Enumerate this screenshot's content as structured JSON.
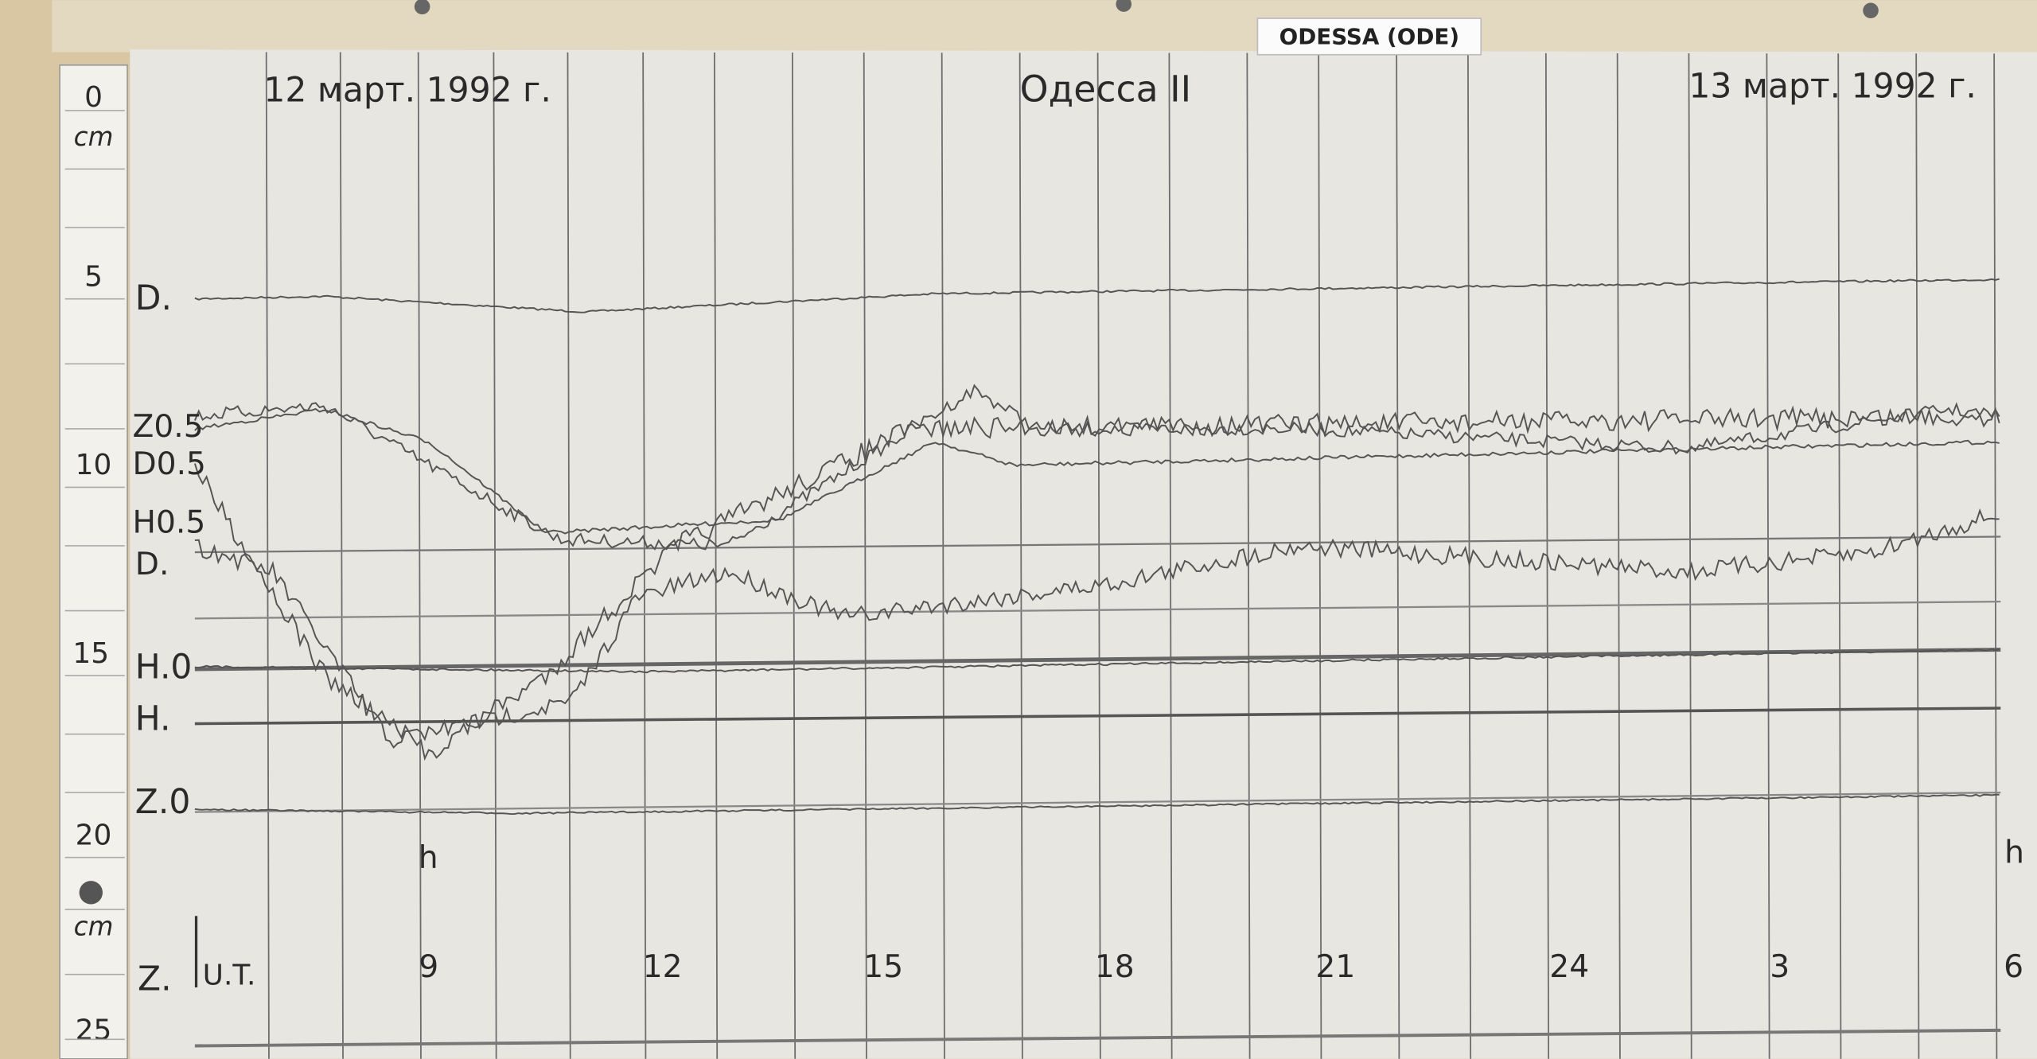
{
  "label": "ODESSA (ODE)",
  "header": {
    "date_left": "12 март. 1992 г.",
    "station": "Одесса II",
    "date_right": "13 март. 1992 г."
  },
  "ruler": {
    "ticks": [
      "0",
      "5",
      "10",
      "15",
      "20",
      "25"
    ],
    "units": [
      "cm",
      "cm"
    ]
  },
  "trace_labels": [
    "D.",
    "Z0.5",
    "D0.5",
    "H0.5",
    "D.",
    "H.0",
    "H.",
    "Z.0",
    "Z."
  ],
  "time_axis": {
    "unit_marks": [
      "h",
      "h"
    ],
    "zone": "U.T.",
    "hours": [
      "9",
      "12",
      "15",
      "18",
      "21",
      "24",
      "3",
      "6"
    ]
  }
}
